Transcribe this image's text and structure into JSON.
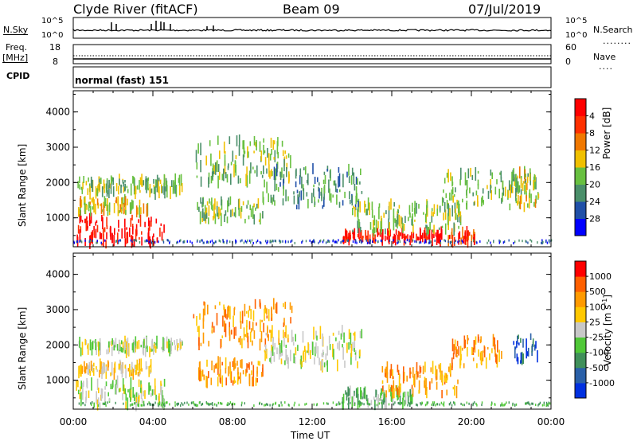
{
  "header": {
    "station": "Clyde River (fitACF)",
    "beam": "Beam 09",
    "date": "07/Jul/2019"
  },
  "noise_panel": {
    "left_label": "N.Sky",
    "right_label": "N.Search",
    "left_ticks": [
      "10^5",
      "10^0"
    ],
    "right_ticks": [
      "10^5",
      "10^0"
    ]
  },
  "freq_panel": {
    "left_label_1": "Freq.",
    "left_label_2": "[MHz]",
    "right_label": "Nave",
    "left_ticks": [
      "18",
      "8"
    ],
    "right_ticks": [
      "60",
      "0"
    ]
  },
  "cpid_panel": {
    "label": "CPID",
    "mode": "normal (fast) 151"
  },
  "colors": {
    "power_scale": [
      "#0000ff",
      "#2050a8",
      "#4a8f6a",
      "#68c040",
      "#f0c000",
      "#f07800",
      "#ff3000",
      "#ff0000"
    ],
    "velocity_scale": [
      "#ff0000",
      "#ff6000",
      "#ff9a00",
      "#ffc800",
      "#c8c8c8",
      "#50c838",
      "#40905a",
      "#2a60a8",
      "#0030e0"
    ],
    "accent": "#000000"
  },
  "chart_data": [
    {
      "type": "heatmap",
      "name": "power-panel",
      "ylabel": "Slant Range [km]",
      "x_ticks": [
        "00:00",
        "04:00",
        "08:00",
        "12:00",
        "16:00",
        "20:00",
        "00:00"
      ],
      "y_ticks": [
        1000,
        2000,
        3000,
        4000
      ],
      "ylim": [
        180,
        4600
      ],
      "xlim_hours": [
        0,
        24
      ],
      "colorbar": {
        "label": "Power [dB]",
        "ticks": [
          "4",
          "8",
          "12",
          "16",
          "20",
          "24",
          "28"
        ]
      },
      "regions": [
        {
          "t0": 0.1,
          "t1": 4.6,
          "r0": 250,
          "r1": 1050,
          "level": 7
        },
        {
          "t0": 0.2,
          "t1": 3.8,
          "r0": 1150,
          "r1": 1500,
          "level": 4
        },
        {
          "t0": 0.2,
          "t1": 5.5,
          "r0": 1700,
          "r1": 2100,
          "level": 3
        },
        {
          "t0": 6.0,
          "t1": 11.0,
          "r0": 2000,
          "r1": 3200,
          "level": 3
        },
        {
          "t0": 6.2,
          "t1": 9.5,
          "r0": 900,
          "r1": 1500,
          "level": 3
        },
        {
          "t0": 9.5,
          "t1": 14.5,
          "r0": 1300,
          "r1": 2400,
          "level": 2
        },
        {
          "t0": 13.5,
          "t1": 18.5,
          "r0": 350,
          "r1": 600,
          "level": 7
        },
        {
          "t0": 14.0,
          "t1": 19.5,
          "r0": 600,
          "r1": 1400,
          "level": 3
        },
        {
          "t0": 18.5,
          "t1": 23.5,
          "r0": 1300,
          "r1": 2300,
          "level": 3
        },
        {
          "t0": 18.8,
          "t1": 20.2,
          "r0": 300,
          "r1": 600,
          "level": 6
        },
        {
          "t0": 22.0,
          "t1": 23.2,
          "r0": 1400,
          "r1": 2300,
          "level": 4
        }
      ]
    },
    {
      "type": "heatmap",
      "name": "velocity-panel",
      "ylabel": "Slant Range [km]",
      "xlabel": "Time UT",
      "x_ticks": [
        "00:00",
        "04:00",
        "08:00",
        "12:00",
        "16:00",
        "20:00",
        "00:00"
      ],
      "y_ticks": [
        1000,
        2000,
        3000,
        4000
      ],
      "ylim": [
        180,
        4600
      ],
      "xlim_hours": [
        0,
        24
      ],
      "colorbar": {
        "label": "Velocity [m s",
        "label_sup": "-1",
        "label_end": "]",
        "ticks": [
          "1000",
          "500",
          "100",
          "25",
          "-25",
          "-100",
          "-500",
          "-1000"
        ]
      },
      "regions": [
        {
          "t0": 0.1,
          "t1": 4.6,
          "r0": 250,
          "r1": 1000,
          "level": 4
        },
        {
          "t0": 0.2,
          "t1": 4.0,
          "r0": 1150,
          "r1": 1450,
          "level": 3
        },
        {
          "t0": 0.2,
          "t1": 5.5,
          "r0": 1800,
          "r1": 2100,
          "level": 4
        },
        {
          "t0": 6.0,
          "t1": 11.0,
          "r0": 2000,
          "r1": 3200,
          "level": 2
        },
        {
          "t0": 6.2,
          "t1": 9.5,
          "r0": 900,
          "r1": 1500,
          "level": 2
        },
        {
          "t0": 9.5,
          "t1": 14.5,
          "r0": 1400,
          "r1": 2400,
          "level": 4
        },
        {
          "t0": 13.5,
          "t1": 17.0,
          "r0": 300,
          "r1": 700,
          "level": 5
        },
        {
          "t0": 15.5,
          "t1": 19.5,
          "r0": 600,
          "r1": 1400,
          "level": 2
        },
        {
          "t0": 19.0,
          "t1": 21.5,
          "r0": 1400,
          "r1": 2200,
          "level": 2
        },
        {
          "t0": 22.0,
          "t1": 23.3,
          "r0": 1500,
          "r1": 2300,
          "level": 7
        }
      ]
    }
  ]
}
